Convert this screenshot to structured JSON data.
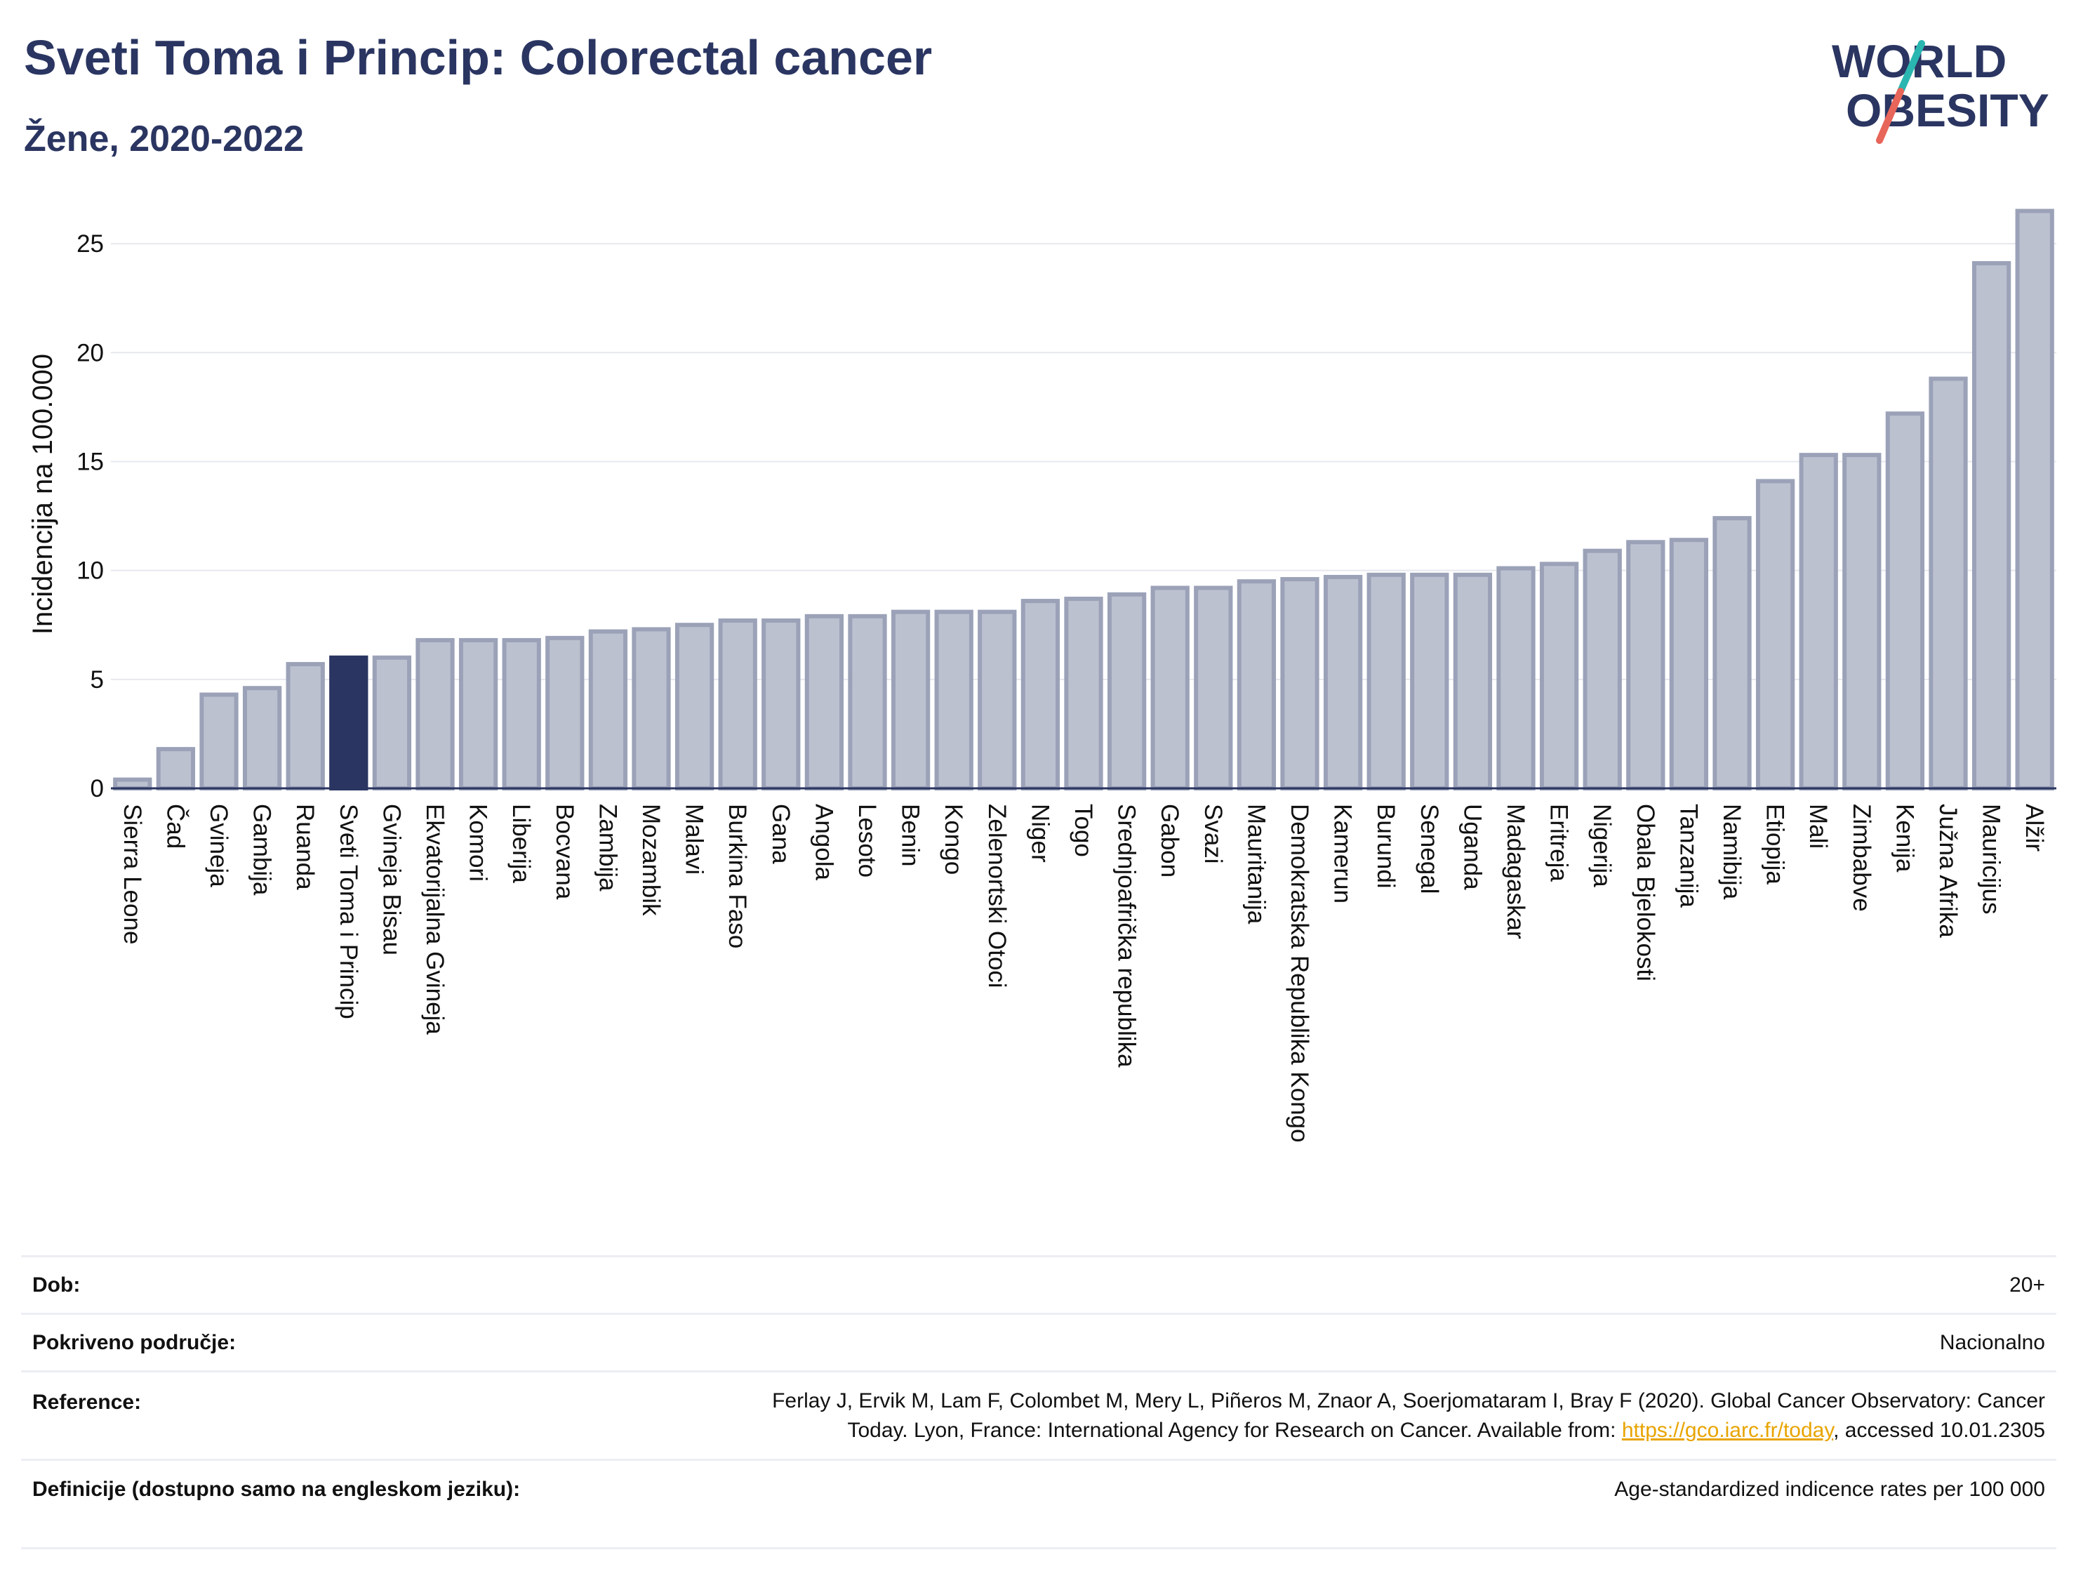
{
  "header": {
    "title": "Sveti Toma i Princip: Colorectal cancer",
    "subtitle": "Žene, 2020-2022"
  },
  "logo": {
    "line1": "WORLD",
    "line2": "OBESITY",
    "accent_colors": [
      "#2ab6b0",
      "#e8655a"
    ]
  },
  "chart_data": {
    "type": "bar",
    "title": "Sveti Toma i Princip: Colorectal cancer",
    "subtitle": "Žene, 2020-2022",
    "ylabel": "Incidencija na 100.000",
    "xlabel": "",
    "ylim": [
      0,
      27
    ],
    "yticks": [
      0,
      5,
      10,
      15,
      20,
      25
    ],
    "grid": true,
    "highlight": "Sveti Toma i Princip",
    "highlight_color": "#2a3561",
    "bar_color": "#bcc1d0",
    "bar_edge_color": "#9ba2b8",
    "categories": [
      "Sierra Leone",
      "Čad",
      "Gvineja",
      "Gambija",
      "Ruanda",
      "Sveti Toma i Princip",
      "Gvineja Bisau",
      "Ekvatorijalna Gvineja",
      "Komori",
      "Liberija",
      "Bocvana",
      "Zambija",
      "Mozambik",
      "Malavi",
      "Burkina Faso",
      "Gana",
      "Angola",
      "Lesoto",
      "Benin",
      "Kongo",
      "Zelenortski Otoci",
      "Niger",
      "Togo",
      "Srednjoafrička republika",
      "Gabon",
      "Svazi",
      "Mauritanija",
      "Demokratska Republika Kongo",
      "Kamerun",
      "Burundi",
      "Senegal",
      "Uganda",
      "Madagaskar",
      "Eritreja",
      "Nigerija",
      "Obala Bjelokosti",
      "Tanzanija",
      "Namibija",
      "Etiopija",
      "Mali",
      "Zimbabve",
      "Kenija",
      "Južna Afrika",
      "Mauricijus",
      "Alžir"
    ],
    "values": [
      0.4,
      1.8,
      4.3,
      4.6,
      5.7,
      6.0,
      6.0,
      6.8,
      6.8,
      6.8,
      6.9,
      7.2,
      7.3,
      7.5,
      7.7,
      7.7,
      7.9,
      7.9,
      8.1,
      8.1,
      8.1,
      8.6,
      8.7,
      8.9,
      9.2,
      9.2,
      9.5,
      9.6,
      9.7,
      9.8,
      9.8,
      9.8,
      10.1,
      10.3,
      10.9,
      11.3,
      11.4,
      12.4,
      14.1,
      15.3,
      15.3,
      17.2,
      18.8,
      24.1,
      26.5
    ]
  },
  "info": {
    "age_label": "Dob:",
    "age_value": "20+",
    "coverage_label": "Pokriveno područje:",
    "coverage_value": "Nacionalno",
    "reference_label": "Reference:",
    "reference_line1": "Ferlay J, Ervik M, Lam F, Colombet M, Mery L, Piñeros M, Znaor A, Soerjomataram I, Bray F (2020). Global Cancer Observatory: Cancer",
    "reference_line2_pre": "Today. Lyon, France: International Agency for Research on Cancer. Available from: ",
    "reference_link": "https://gco.iarc.fr/today",
    "reference_line2_post": ", accessed 10.01.2305",
    "definition_label": "Definicije (dostupno samo na engleskom jeziku):",
    "definition_value": "Age-standardized indicence rates per 100 000"
  }
}
